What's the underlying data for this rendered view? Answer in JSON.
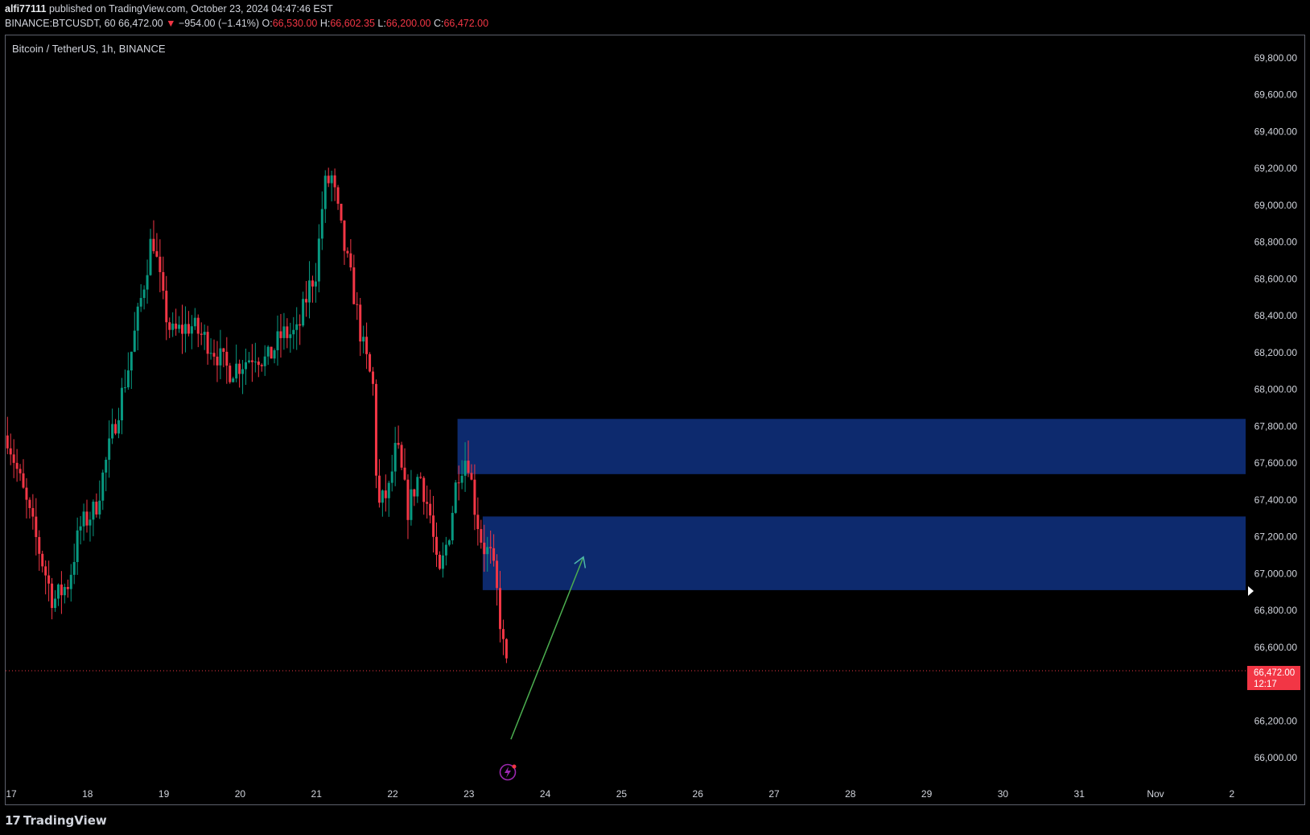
{
  "header": {
    "publisher": "alfi77111",
    "publish_text": "published on TradingView.com, October 23, 2024 04:47:46 EST",
    "symbol": "BINANCE:BTCUSDT, 60",
    "last": "66,472.00",
    "change": "−954.00 (−1.41%)",
    "o_label": "O:",
    "o_value": "66,530.00",
    "h_label": "H:",
    "h_value": "66,602.35",
    "l_label": "L:",
    "l_value": "66,200.00",
    "c_label": "C:",
    "c_value": "66,472.00"
  },
  "chart_title": "Bitcoin / TetherUS, 1h, BINANCE",
  "current_price_tag": {
    "price": "66,472.00",
    "countdown": "12:17"
  },
  "footer": {
    "logo": "TradingView"
  },
  "colors": {
    "up": "#089981",
    "down": "#f23645",
    "zone": "#0d2a6e",
    "arrow": "#4caf50",
    "background": "#000000",
    "text": "#d1d4dc"
  },
  "chart_data": {
    "type": "candlestick",
    "title": "Bitcoin / TetherUS, 1h, BINANCE",
    "x_ticks": [
      "17",
      "18",
      "19",
      "20",
      "21",
      "22",
      "23",
      "24",
      "25",
      "26",
      "27",
      "28",
      "29",
      "30",
      "31",
      "Nov",
      "2"
    ],
    "y_ticks": [
      "69,800.00",
      "69,600.00",
      "69,400.00",
      "69,200.00",
      "69,000.00",
      "68,800.00",
      "68,600.00",
      "68,400.00",
      "68,200.00",
      "68,000.00",
      "67,800.00",
      "67,600.00",
      "67,400.00",
      "67,200.00",
      "67,000.00",
      "66,800.00",
      "66,600.00",
      "66,200.00",
      "66,000.00"
    ],
    "ylim": [
      65950,
      69900
    ],
    "current_price": 66472,
    "zones": [
      {
        "top": 67840,
        "bottom": 67540,
        "start_day": 22.85
      },
      {
        "top": 67310,
        "bottom": 66910,
        "start_day": 23.18
      }
    ],
    "arrow": {
      "from": [
        23.55,
        66100
      ],
      "to": [
        24.5,
        67090
      ]
    },
    "path_points": [
      [
        16.95,
        67750
      ],
      [
        17.15,
        67450
      ],
      [
        17.35,
        67150
      ],
      [
        17.55,
        66850
      ],
      [
        17.75,
        66950
      ],
      [
        17.9,
        67250
      ],
      [
        18.1,
        67350
      ],
      [
        18.35,
        67800
      ],
      [
        18.55,
        68150
      ],
      [
        18.75,
        68600
      ],
      [
        18.85,
        68850
      ],
      [
        19.0,
        68450
      ],
      [
        19.1,
        68300
      ],
      [
        19.35,
        68350
      ],
      [
        19.6,
        68250
      ],
      [
        19.85,
        68100
      ],
      [
        20.05,
        68150
      ],
      [
        20.2,
        68200
      ],
      [
        20.35,
        68150
      ],
      [
        20.55,
        68300
      ],
      [
        20.75,
        68300
      ],
      [
        20.9,
        68550
      ],
      [
        21.0,
        68650
      ],
      [
        21.1,
        69100
      ],
      [
        21.2,
        69150
      ],
      [
        21.35,
        68800
      ],
      [
        21.5,
        68500
      ],
      [
        21.6,
        68250
      ],
      [
        21.75,
        68000
      ],
      [
        21.8,
        67350
      ],
      [
        21.95,
        67450
      ],
      [
        22.05,
        67700
      ],
      [
        22.2,
        67350
      ],
      [
        22.35,
        67550
      ],
      [
        22.5,
        67300
      ],
      [
        22.6,
        66950
      ],
      [
        22.75,
        67250
      ],
      [
        22.85,
        67550
      ],
      [
        22.98,
        67650
      ],
      [
        23.08,
        67350
      ],
      [
        23.18,
        67150
      ],
      [
        23.28,
        67100
      ],
      [
        23.35,
        66950
      ],
      [
        23.45,
        66600
      ],
      [
        23.5,
        66472
      ]
    ]
  }
}
